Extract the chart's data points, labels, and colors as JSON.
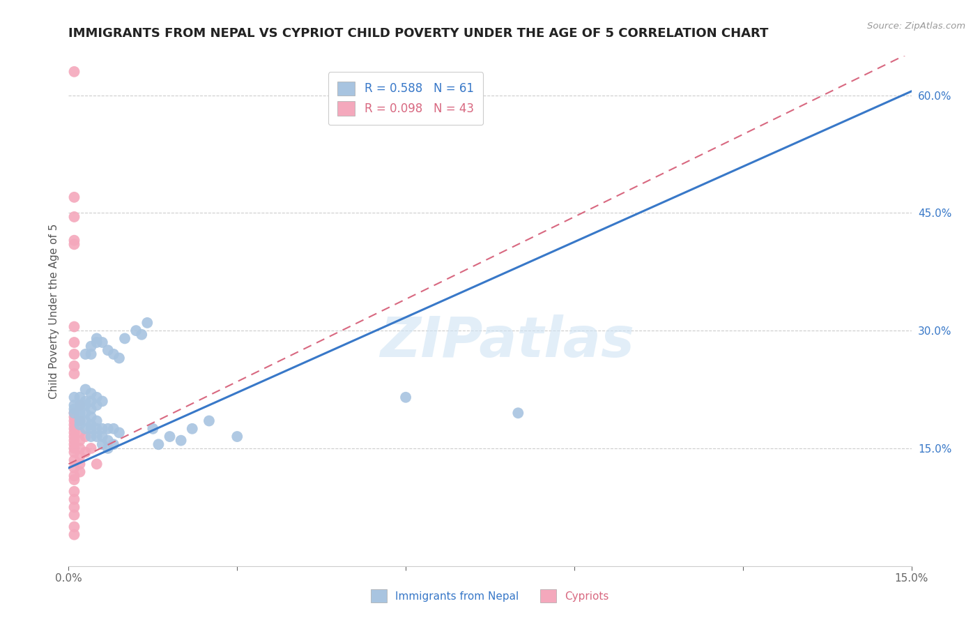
{
  "title": "IMMIGRANTS FROM NEPAL VS CYPRIOT CHILD POVERTY UNDER THE AGE OF 5 CORRELATION CHART",
  "source": "Source: ZipAtlas.com",
  "xmin": 0.0,
  "xmax": 0.15,
  "ymin": 0.0,
  "ymax": 0.65,
  "yticks": [
    0.15,
    0.3,
    0.45,
    0.6
  ],
  "ytick_labels": [
    "15.0%",
    "30.0%",
    "45.0%",
    "60.0%"
  ],
  "xtick_positions": [
    0.0,
    0.03,
    0.06,
    0.09,
    0.12,
    0.15
  ],
  "xtick_labels": [
    "0.0%",
    "",
    "",
    "",
    "",
    "15.0%"
  ],
  "blue_R": 0.588,
  "blue_N": 61,
  "pink_R": 0.098,
  "pink_N": 43,
  "blue_color": "#a8c4e0",
  "blue_line_color": "#3878c8",
  "pink_color": "#f4a8bc",
  "pink_line_color": "#d86880",
  "blue_label": "Immigrants from Nepal",
  "pink_label": "Cypriots",
  "watermark": "ZIPatlas",
  "title_fontsize": 13,
  "axis_label_fontsize": 11,
  "tick_fontsize": 11,
  "legend_fontsize": 12,
  "blue_line_x": [
    0.0,
    0.15
  ],
  "blue_line_y": [
    0.125,
    0.605
  ],
  "pink_line_x": [
    0.0,
    0.15
  ],
  "pink_line_y": [
    0.13,
    0.655
  ],
  "blue_scatter": [
    [
      0.001,
      0.215
    ],
    [
      0.001,
      0.205
    ],
    [
      0.001,
      0.2
    ],
    [
      0.001,
      0.195
    ],
    [
      0.002,
      0.215
    ],
    [
      0.002,
      0.205
    ],
    [
      0.002,
      0.2
    ],
    [
      0.002,
      0.195
    ],
    [
      0.002,
      0.19
    ],
    [
      0.002,
      0.185
    ],
    [
      0.002,
      0.18
    ],
    [
      0.003,
      0.27
    ],
    [
      0.003,
      0.225
    ],
    [
      0.003,
      0.21
    ],
    [
      0.003,
      0.205
    ],
    [
      0.003,
      0.195
    ],
    [
      0.003,
      0.185
    ],
    [
      0.003,
      0.175
    ],
    [
      0.004,
      0.28
    ],
    [
      0.004,
      0.27
    ],
    [
      0.004,
      0.22
    ],
    [
      0.004,
      0.21
    ],
    [
      0.004,
      0.2
    ],
    [
      0.004,
      0.19
    ],
    [
      0.004,
      0.18
    ],
    [
      0.004,
      0.175
    ],
    [
      0.004,
      0.165
    ],
    [
      0.005,
      0.29
    ],
    [
      0.005,
      0.285
    ],
    [
      0.005,
      0.215
    ],
    [
      0.005,
      0.205
    ],
    [
      0.005,
      0.185
    ],
    [
      0.005,
      0.175
    ],
    [
      0.005,
      0.165
    ],
    [
      0.006,
      0.285
    ],
    [
      0.006,
      0.21
    ],
    [
      0.006,
      0.175
    ],
    [
      0.006,
      0.165
    ],
    [
      0.006,
      0.155
    ],
    [
      0.007,
      0.275
    ],
    [
      0.007,
      0.175
    ],
    [
      0.007,
      0.16
    ],
    [
      0.007,
      0.15
    ],
    [
      0.008,
      0.27
    ],
    [
      0.008,
      0.175
    ],
    [
      0.008,
      0.155
    ],
    [
      0.009,
      0.265
    ],
    [
      0.009,
      0.17
    ],
    [
      0.01,
      0.29
    ],
    [
      0.012,
      0.3
    ],
    [
      0.013,
      0.295
    ],
    [
      0.014,
      0.31
    ],
    [
      0.015,
      0.175
    ],
    [
      0.016,
      0.155
    ],
    [
      0.018,
      0.165
    ],
    [
      0.02,
      0.16
    ],
    [
      0.022,
      0.175
    ],
    [
      0.025,
      0.185
    ],
    [
      0.03,
      0.165
    ],
    [
      0.06,
      0.215
    ],
    [
      0.08,
      0.195
    ]
  ],
  "pink_scatter": [
    [
      0.001,
      0.63
    ],
    [
      0.001,
      0.47
    ],
    [
      0.001,
      0.415
    ],
    [
      0.001,
      0.445
    ],
    [
      0.001,
      0.41
    ],
    [
      0.001,
      0.305
    ],
    [
      0.001,
      0.285
    ],
    [
      0.001,
      0.27
    ],
    [
      0.001,
      0.255
    ],
    [
      0.001,
      0.245
    ],
    [
      0.001,
      0.195
    ],
    [
      0.001,
      0.19
    ],
    [
      0.001,
      0.185
    ],
    [
      0.001,
      0.18
    ],
    [
      0.001,
      0.175
    ],
    [
      0.001,
      0.17
    ],
    [
      0.001,
      0.165
    ],
    [
      0.001,
      0.16
    ],
    [
      0.001,
      0.155
    ],
    [
      0.001,
      0.15
    ],
    [
      0.001,
      0.145
    ],
    [
      0.001,
      0.135
    ],
    [
      0.001,
      0.125
    ],
    [
      0.001,
      0.115
    ],
    [
      0.001,
      0.11
    ],
    [
      0.001,
      0.095
    ],
    [
      0.001,
      0.085
    ],
    [
      0.001,
      0.075
    ],
    [
      0.001,
      0.065
    ],
    [
      0.001,
      0.05
    ],
    [
      0.001,
      0.04
    ],
    [
      0.002,
      0.205
    ],
    [
      0.002,
      0.185
    ],
    [
      0.002,
      0.17
    ],
    [
      0.002,
      0.16
    ],
    [
      0.002,
      0.15
    ],
    [
      0.002,
      0.14
    ],
    [
      0.002,
      0.13
    ],
    [
      0.002,
      0.12
    ],
    [
      0.003,
      0.165
    ],
    [
      0.003,
      0.145
    ],
    [
      0.004,
      0.15
    ],
    [
      0.005,
      0.13
    ]
  ]
}
